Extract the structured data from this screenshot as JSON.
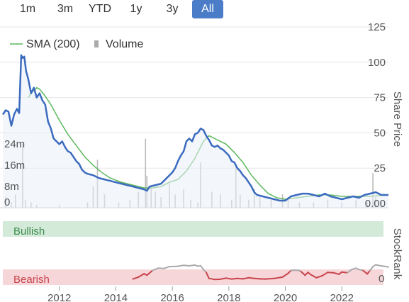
{
  "range_buttons": [
    {
      "label": "1m",
      "active": false
    },
    {
      "label": "3m",
      "active": false
    },
    {
      "label": "YTD",
      "active": false
    },
    {
      "label": "1y",
      "active": false
    },
    {
      "label": "3y",
      "active": false
    },
    {
      "label": "All",
      "active": true
    }
  ],
  "colors": {
    "price_line": "#3b6bbf",
    "sma_line": "#5cb85c",
    "volume_bar": "#bbbbbb",
    "bullish_zone": "#d4ead9",
    "bearish_zone": "#f6d6d9",
    "rank_bullish": "#aaaaaa",
    "rank_bearish": "#c9434c",
    "active_button": "#4a7cc7"
  },
  "legend": {
    "sma_label": "SMA (200)",
    "volume_label": "Volume"
  },
  "axis": {
    "price_title": "Share Price",
    "rank_title": "StockRank",
    "bullish_label": "Bullish",
    "bearish_label": "Bearish",
    "rank_zero": "0"
  },
  "chart_data": {
    "type": "line",
    "x_range": [
      2010.0,
      2023.65
    ],
    "x_ticks": [
      "2012",
      "2014",
      "2016",
      "2018",
      "2020",
      "2022"
    ],
    "x_tick_values": [
      2012,
      2014,
      2016,
      2018,
      2020,
      2022
    ],
    "y_range": [
      0,
      125
    ],
    "y_ticks": [
      "0.00",
      "25",
      "50",
      "75",
      "100",
      "125"
    ],
    "y_tick_values": [
      0,
      25,
      50,
      75,
      100,
      125
    ],
    "volume_ticks": [
      "0",
      "8m",
      "16m",
      "24m"
    ],
    "volume_tick_values": [
      0,
      8,
      16,
      24
    ],
    "volume_max": 32,
    "series": [
      {
        "name": "Price",
        "points": [
          [
            2010.0,
            63
          ],
          [
            2010.1,
            66
          ],
          [
            2010.2,
            65
          ],
          [
            2010.3,
            55
          ],
          [
            2010.4,
            63
          ],
          [
            2010.5,
            67
          ],
          [
            2010.58,
            64
          ],
          [
            2010.65,
            105
          ],
          [
            2010.7,
            103
          ],
          [
            2010.76,
            104
          ],
          [
            2010.82,
            94
          ],
          [
            2010.9,
            88
          ],
          [
            2011.0,
            78
          ],
          [
            2011.1,
            82
          ],
          [
            2011.2,
            75
          ],
          [
            2011.3,
            78
          ],
          [
            2011.4,
            73
          ],
          [
            2011.5,
            70
          ],
          [
            2011.6,
            58
          ],
          [
            2011.7,
            53
          ],
          [
            2011.8,
            46
          ],
          [
            2011.9,
            44
          ],
          [
            2012.0,
            42
          ],
          [
            2012.1,
            44
          ],
          [
            2012.2,
            40
          ],
          [
            2012.3,
            37
          ],
          [
            2012.4,
            36
          ],
          [
            2012.5,
            33
          ],
          [
            2012.6,
            30
          ],
          [
            2012.7,
            28
          ],
          [
            2012.8,
            24
          ],
          [
            2012.9,
            22
          ],
          [
            2013.0,
            21
          ],
          [
            2013.2,
            20
          ],
          [
            2013.4,
            18
          ],
          [
            2013.6,
            17
          ],
          [
            2013.8,
            16
          ],
          [
            2014.0,
            15
          ],
          [
            2014.2,
            14
          ],
          [
            2014.4,
            13
          ],
          [
            2014.6,
            12
          ],
          [
            2014.8,
            11
          ],
          [
            2015.0,
            10
          ],
          [
            2015.1,
            9
          ],
          [
            2015.2,
            12
          ],
          [
            2015.4,
            13
          ],
          [
            2015.6,
            14
          ],
          [
            2015.8,
            18
          ],
          [
            2016.0,
            22
          ],
          [
            2016.1,
            25
          ],
          [
            2016.2,
            30
          ],
          [
            2016.3,
            34
          ],
          [
            2016.4,
            37
          ],
          [
            2016.5,
            44
          ],
          [
            2016.6,
            46
          ],
          [
            2016.7,
            44
          ],
          [
            2016.8,
            49
          ],
          [
            2016.9,
            50
          ],
          [
            2017.0,
            53
          ],
          [
            2017.1,
            52
          ],
          [
            2017.2,
            48
          ],
          [
            2017.3,
            45
          ],
          [
            2017.4,
            41
          ],
          [
            2017.5,
            40
          ],
          [
            2017.6,
            41
          ],
          [
            2017.7,
            39
          ],
          [
            2017.8,
            38
          ],
          [
            2017.9,
            36
          ],
          [
            2018.0,
            34
          ],
          [
            2018.1,
            30
          ],
          [
            2018.2,
            29
          ],
          [
            2018.3,
            25
          ],
          [
            2018.4,
            23
          ],
          [
            2018.5,
            20
          ],
          [
            2018.6,
            18
          ],
          [
            2018.7,
            15
          ],
          [
            2018.8,
            12
          ],
          [
            2018.9,
            8
          ],
          [
            2019.0,
            6
          ],
          [
            2019.2,
            5
          ],
          [
            2019.4,
            4
          ],
          [
            2019.6,
            3
          ],
          [
            2019.8,
            2
          ],
          [
            2020.0,
            2
          ],
          [
            2020.2,
            5
          ],
          [
            2020.4,
            6
          ],
          [
            2020.6,
            7
          ],
          [
            2020.8,
            7
          ],
          [
            2021.0,
            6
          ],
          [
            2021.2,
            5
          ],
          [
            2021.4,
            7
          ],
          [
            2021.6,
            5
          ],
          [
            2021.8,
            4
          ],
          [
            2022.0,
            3
          ],
          [
            2022.2,
            4
          ],
          [
            2022.4,
            5
          ],
          [
            2022.6,
            4
          ],
          [
            2022.8,
            6
          ],
          [
            2023.0,
            7
          ],
          [
            2023.2,
            8
          ],
          [
            2023.4,
            6
          ],
          [
            2023.65,
            6
          ]
        ]
      },
      {
        "name": "SMA (200)",
        "points": [
          [
            2010.9,
            75
          ],
          [
            2011.0,
            78
          ],
          [
            2011.1,
            80
          ],
          [
            2011.2,
            82
          ],
          [
            2011.3,
            81
          ],
          [
            2011.5,
            76
          ],
          [
            2011.7,
            70
          ],
          [
            2012.0,
            59
          ],
          [
            2012.3,
            49
          ],
          [
            2012.6,
            41
          ],
          [
            2012.9,
            33
          ],
          [
            2013.2,
            27
          ],
          [
            2013.5,
            22
          ],
          [
            2013.8,
            18
          ],
          [
            2014.2,
            15
          ],
          [
            2014.6,
            13
          ],
          [
            2015.0,
            11
          ],
          [
            2015.3,
            11
          ],
          [
            2015.6,
            12
          ],
          [
            2015.9,
            15
          ],
          [
            2016.2,
            17
          ],
          [
            2016.5,
            23
          ],
          [
            2016.8,
            32
          ],
          [
            2017.1,
            44
          ],
          [
            2017.3,
            48
          ],
          [
            2017.6,
            45
          ],
          [
            2017.9,
            42
          ],
          [
            2018.2,
            36
          ],
          [
            2018.5,
            29
          ],
          [
            2018.8,
            20
          ],
          [
            2019.1,
            13
          ],
          [
            2019.4,
            7
          ],
          [
            2019.7,
            4
          ],
          [
            2020.0,
            3
          ],
          [
            2020.4,
            4
          ],
          [
            2020.8,
            5
          ],
          [
            2021.2,
            6
          ],
          [
            2021.6,
            6
          ],
          [
            2022.0,
            5
          ],
          [
            2022.5,
            5
          ],
          [
            2023.0,
            5
          ],
          [
            2023.65,
            6
          ]
        ]
      },
      {
        "name": "Volume",
        "points": [
          [
            2010.1,
            4
          ],
          [
            2010.3,
            2
          ],
          [
            2010.45,
            5
          ],
          [
            2010.7,
            24
          ],
          [
            2010.8,
            3
          ],
          [
            2011.0,
            2
          ],
          [
            2011.2,
            1
          ],
          [
            2012.0,
            1
          ],
          [
            2013.0,
            2
          ],
          [
            2013.2,
            8
          ],
          [
            2013.35,
            18
          ],
          [
            2013.6,
            5
          ],
          [
            2014.1,
            2
          ],
          [
            2014.5,
            3
          ],
          [
            2014.8,
            6
          ],
          [
            2015.05,
            26
          ],
          [
            2015.1,
            12
          ],
          [
            2015.25,
            8
          ],
          [
            2015.4,
            6
          ],
          [
            2015.6,
            4
          ],
          [
            2015.9,
            9
          ],
          [
            2016.1,
            5
          ],
          [
            2016.4,
            7
          ],
          [
            2016.65,
            3
          ],
          [
            2016.9,
            2
          ],
          [
            2017.0,
            17
          ],
          [
            2017.4,
            6
          ],
          [
            2017.7,
            5
          ],
          [
            2018.1,
            3
          ],
          [
            2018.25,
            16
          ],
          [
            2018.4,
            5
          ],
          [
            2018.7,
            3
          ],
          [
            2018.9,
            7
          ],
          [
            2019.1,
            4
          ],
          [
            2019.5,
            3
          ],
          [
            2019.9,
            5
          ],
          [
            2020.1,
            4
          ],
          [
            2020.5,
            2
          ],
          [
            2021.0,
            2
          ],
          [
            2021.5,
            3
          ],
          [
            2022.0,
            2
          ],
          [
            2022.5,
            3
          ],
          [
            2022.9,
            2
          ],
          [
            2023.1,
            13
          ],
          [
            2023.2,
            4
          ],
          [
            2023.4,
            2
          ]
        ]
      },
      {
        "name": "StockRank",
        "points": [
          [
            2014.6,
            5
          ],
          [
            2014.8,
            15
          ],
          [
            2015.0,
            33
          ],
          [
            2015.1,
            25
          ],
          [
            2015.3,
            50
          ],
          [
            2015.5,
            62
          ],
          [
            2015.7,
            60
          ],
          [
            2015.9,
            70
          ],
          [
            2016.2,
            72
          ],
          [
            2016.4,
            77
          ],
          [
            2016.6,
            74
          ],
          [
            2016.8,
            78
          ],
          [
            2016.9,
            72
          ],
          [
            2017.0,
            75
          ],
          [
            2017.1,
            55
          ],
          [
            2017.2,
            40
          ],
          [
            2017.3,
            8
          ],
          [
            2017.5,
            3
          ],
          [
            2017.7,
            4
          ],
          [
            2017.9,
            10
          ],
          [
            2018.1,
            5
          ],
          [
            2018.3,
            8
          ],
          [
            2018.5,
            6
          ],
          [
            2018.7,
            12
          ],
          [
            2018.9,
            8
          ],
          [
            2019.1,
            6
          ],
          [
            2019.3,
            5
          ],
          [
            2019.6,
            8
          ],
          [
            2019.9,
            15
          ],
          [
            2020.1,
            35
          ],
          [
            2020.2,
            50
          ],
          [
            2020.35,
            52
          ],
          [
            2020.5,
            49
          ],
          [
            2020.55,
            45
          ],
          [
            2020.7,
            25
          ],
          [
            2020.8,
            40
          ],
          [
            2020.9,
            28
          ],
          [
            2021.1,
            12
          ],
          [
            2021.3,
            22
          ],
          [
            2021.5,
            40
          ],
          [
            2021.7,
            38
          ],
          [
            2021.9,
            30
          ],
          [
            2022.0,
            42
          ],
          [
            2022.2,
            38
          ],
          [
            2022.35,
            55
          ],
          [
            2022.5,
            62
          ],
          [
            2022.6,
            55
          ],
          [
            2022.75,
            50
          ],
          [
            2022.9,
            32
          ],
          [
            2023.0,
            50
          ],
          [
            2023.1,
            70
          ],
          [
            2023.2,
            80
          ],
          [
            2023.35,
            75
          ],
          [
            2023.5,
            72
          ],
          [
            2023.65,
            68
          ]
        ]
      }
    ]
  }
}
